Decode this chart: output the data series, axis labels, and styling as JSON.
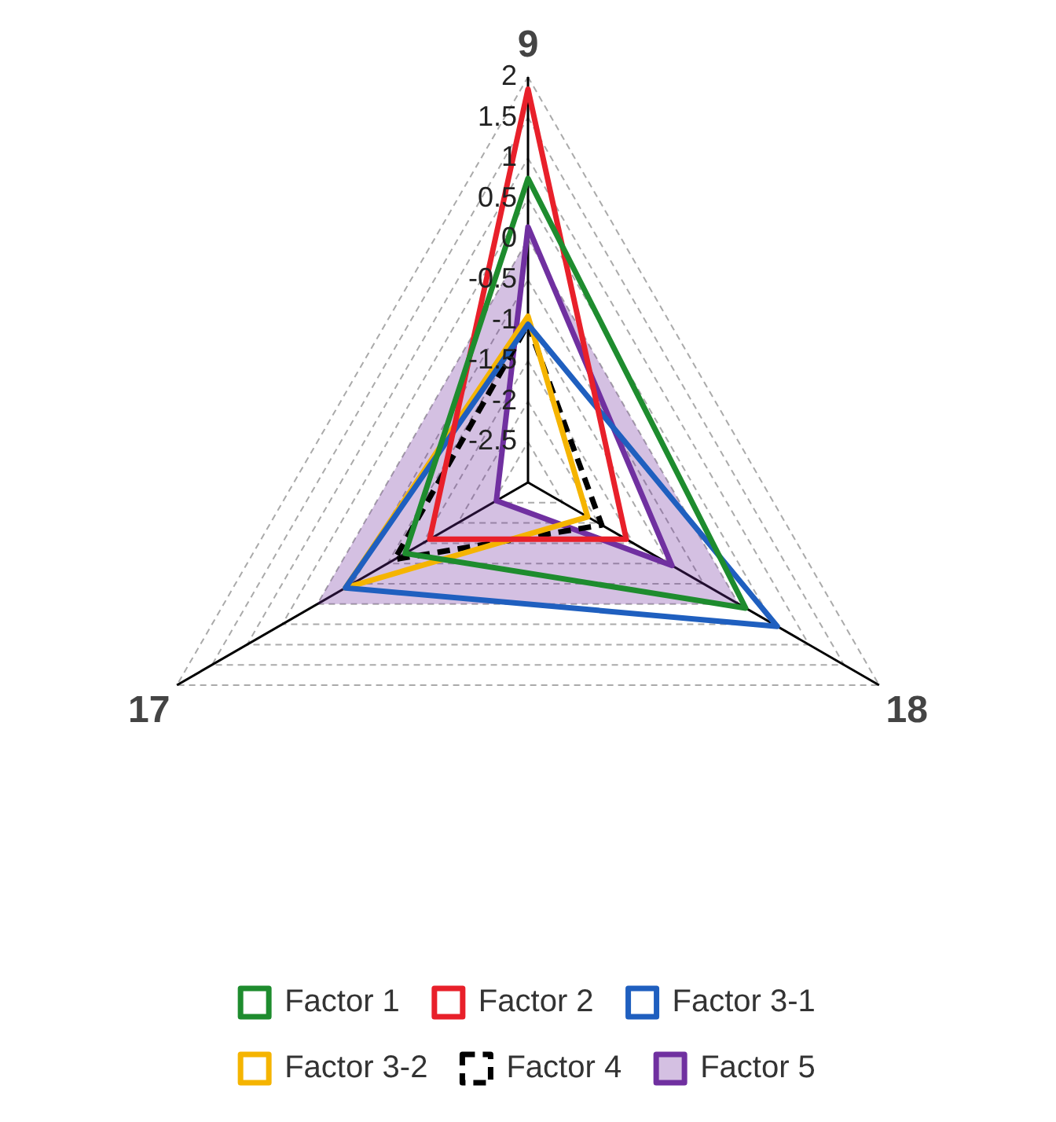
{
  "chart_data": {
    "type": "radar",
    "categories": [
      "9",
      "18",
      "17"
    ],
    "series": [
      {
        "name": "Factor 1",
        "color": "#1e8c2e",
        "values": [
          0.75,
          0.1,
          -1.25
        ]
      },
      {
        "name": "Factor 2",
        "color": "#e8202a",
        "values": [
          1.85,
          -1.6,
          -1.6
        ]
      },
      {
        "name": "Factor 3-1",
        "color": "#1f5fbf",
        "values": [
          -1.05,
          0.55,
          -0.4
        ]
      },
      {
        "name": "Factor 3-2",
        "color": "#f5b400",
        "values": [
          -0.95,
          -2.15,
          -0.4
        ]
      },
      {
        "name": "Factor 4",
        "color": "#000000",
        "values": [
          -1.05,
          -1.95,
          -1.1
        ],
        "line_style": "dashed"
      },
      {
        "name": "Factor 5",
        "color": "#7030a0",
        "values": [
          0.15,
          -0.95,
          -2.55
        ],
        "type": "area"
      }
    ],
    "ylim": [
      -3,
      2
    ],
    "yticks": [
      -2.5,
      -2,
      -1.5,
      -1,
      -0.5,
      0,
      0.5,
      1,
      1.5,
      2
    ],
    "grid": true,
    "legend": "bottom",
    "marker": "none",
    "line_style": "solid"
  }
}
